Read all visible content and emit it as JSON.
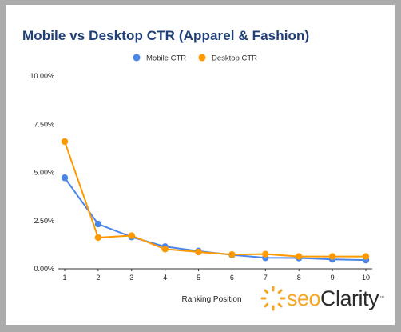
{
  "chart_data": {
    "type": "line",
    "title": "Mobile vs Desktop CTR (Apparel & Fashion)",
    "xlabel": "Ranking Position",
    "ylabel": "",
    "categories": [
      "1",
      "2",
      "3",
      "4",
      "5",
      "6",
      "7",
      "8",
      "9",
      "10"
    ],
    "ylim": [
      0,
      10
    ],
    "yticks": [
      "0.00%",
      "2.50%",
      "5.00%",
      "7.50%",
      "10.00%"
    ],
    "grid": false,
    "legend": "top-center",
    "series": [
      {
        "name": "Mobile CTR",
        "color": "#4a86e8",
        "values": [
          4.72,
          2.32,
          1.65,
          1.15,
          0.92,
          0.72,
          0.57,
          0.56,
          0.49,
          0.45
        ]
      },
      {
        "name": "Desktop CTR",
        "color": "#ff9900",
        "values": [
          6.6,
          1.62,
          1.72,
          1.02,
          0.87,
          0.74,
          0.76,
          0.64,
          0.64,
          0.64
        ]
      }
    ]
  },
  "logo": {
    "seo": "seo",
    "clarity": "Clarity",
    "tm": "™"
  }
}
